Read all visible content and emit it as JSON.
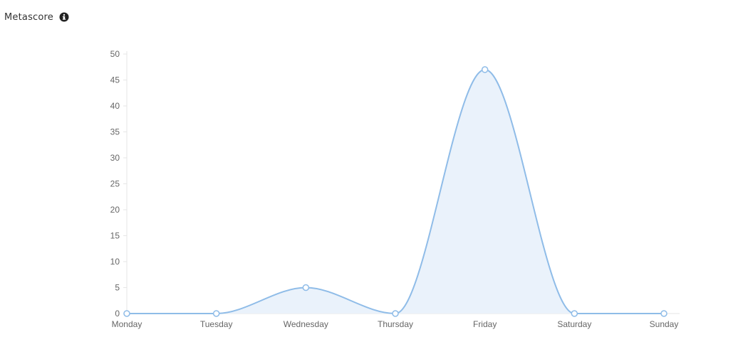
{
  "header": {
    "title": "Metascore",
    "info_icon": "info-circle-icon"
  },
  "colors": {
    "line": "#8fbce8",
    "fill": "#eaf2fb",
    "point_fill": "#ffffff",
    "axis": "#e6e6e6",
    "tick_text": "#666666"
  },
  "chart_data": {
    "type": "area",
    "title": "Metascore",
    "xlabel": "",
    "ylabel": "",
    "categories": [
      "Monday",
      "Tuesday",
      "Wednesday",
      "Thursday",
      "Friday",
      "Saturday",
      "Sunday"
    ],
    "series": [
      {
        "values": [
          0,
          0,
          5,
          0,
          47,
          0,
          0
        ]
      }
    ],
    "ylim": [
      0,
      50
    ],
    "yticks": [
      0,
      5,
      10,
      15,
      20,
      25,
      30,
      35,
      40,
      45,
      50
    ],
    "grid": false,
    "legend": "none"
  }
}
